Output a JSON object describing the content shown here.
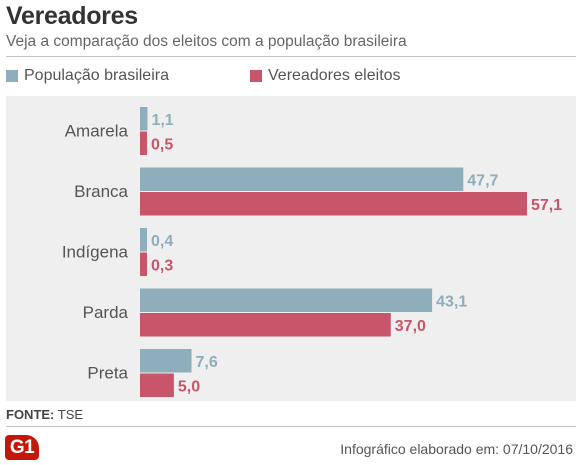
{
  "header": {
    "title": "Vereadores",
    "subtitle": "Veja a comparação dos eleitos com a população brasileira"
  },
  "legend": [
    {
      "label": "População brasileira",
      "color": "#8eaebb"
    },
    {
      "label": "Vereadores eleitos",
      "color": "#c85569"
    }
  ],
  "chart_data": {
    "type": "bar",
    "orientation": "horizontal",
    "title": "Vereadores",
    "subtitle": "Veja a comparação dos eleitos com a população brasileira",
    "categories": [
      "Amarela",
      "Branca",
      "Indígena",
      "Parda",
      "Preta"
    ],
    "series": [
      {
        "name": "População brasileira",
        "color": "#8eaebb",
        "values": [
          1.1,
          47.7,
          0.4,
          43.1,
          7.6
        ],
        "labels": [
          "1,1",
          "47,7",
          "0,4",
          "43,1",
          "7,6"
        ]
      },
      {
        "name": "Vereadores eleitos",
        "color": "#c85569",
        "values": [
          0.5,
          57.1,
          0.3,
          37.0,
          5.0
        ],
        "labels": [
          "0,5",
          "57,1",
          "0,3",
          "37,0",
          "5,0"
        ]
      }
    ],
    "xlim": [
      0,
      57.1
    ],
    "grid": false,
    "legend_position": "top-left",
    "label_color": "#8eaebb",
    "value_label_color_series2": "#c85569"
  },
  "footer": {
    "source_label": "FONTE:",
    "source_value": "TSE",
    "logo_text": "G1",
    "credit": "Infográfico elaborado em: 07/10/2016"
  }
}
